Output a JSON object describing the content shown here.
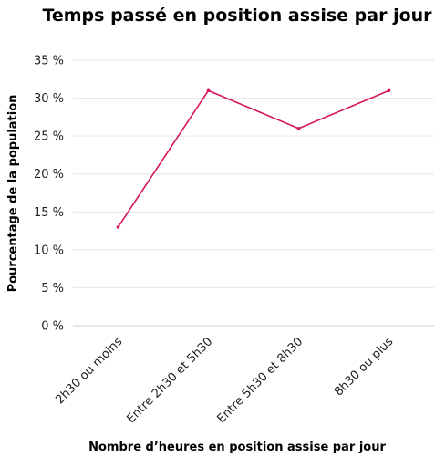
{
  "chart_data": {
    "type": "line",
    "title": "Temps passé en position assise par jour",
    "xlabel": "Nombre d’heures en position assise par jour",
    "ylabel": "Pourcentage de la population",
    "categories": [
      "2h30 ou moins",
      "Entre 2h30 et 5h30",
      "Entre 5h30 et 8h30",
      "8h30 ou plus"
    ],
    "series": [
      {
        "values": [
          13,
          31,
          26,
          31
        ],
        "color": "#d6145f"
      }
    ],
    "ylim": [
      0,
      35
    ],
    "yticks": [
      {
        "value": 0,
        "label": "0 %"
      },
      {
        "value": 5,
        "label": "5 %"
      },
      {
        "value": 10,
        "label": "10 %"
      },
      {
        "value": 15,
        "label": "15 %"
      },
      {
        "value": 20,
        "label": "20 %"
      },
      {
        "value": 25,
        "label": "25 %"
      },
      {
        "value": 30,
        "label": "30 %"
      },
      {
        "value": 35,
        "label": "35 %"
      }
    ],
    "grid": true,
    "legend": "none"
  }
}
